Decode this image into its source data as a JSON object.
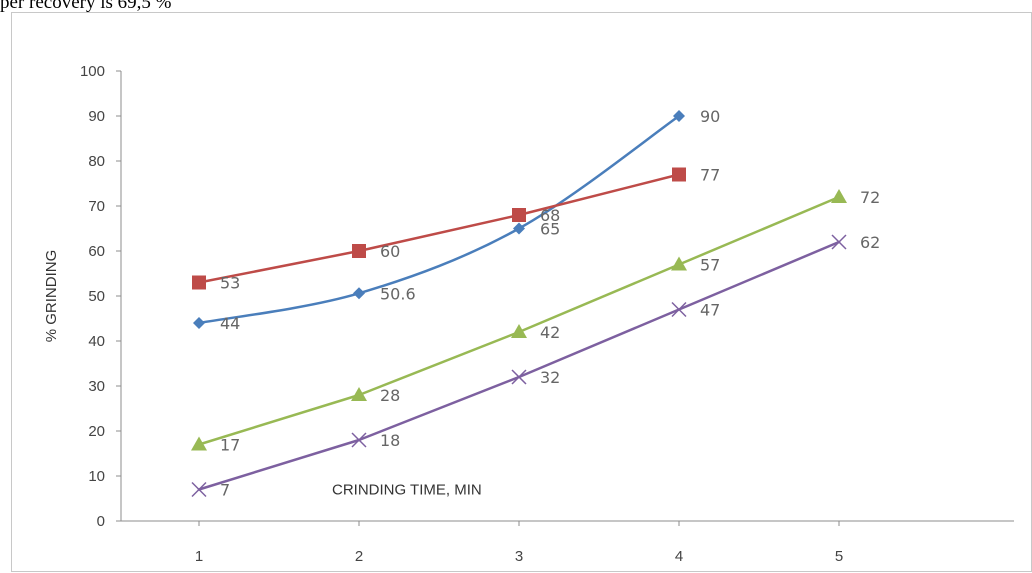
{
  "caption": "per recovery is 69,5 %",
  "chart_data": {
    "type": "line",
    "title": "",
    "xlabel": "CRINDING TIME, MIN",
    "ylabel": "% GRINDING",
    "categories": [
      "1",
      "2",
      "3",
      "4",
      "5"
    ],
    "ylim": [
      0,
      100
    ],
    "yticks": [
      0,
      10,
      20,
      30,
      40,
      50,
      60,
      70,
      80,
      90,
      100
    ],
    "grid": false,
    "legend": "none",
    "series": [
      {
        "color": "#4a7ebb",
        "marker": "diamond",
        "smooth": true,
        "values": [
          44,
          50.6,
          65,
          90,
          null
        ],
        "labels": [
          "44",
          "50.6",
          "65",
          "90",
          ""
        ]
      },
      {
        "color": "#be4b48",
        "marker": "square",
        "smooth": false,
        "values": [
          53,
          60,
          68,
          77,
          null
        ],
        "labels": [
          "53",
          "60",
          "68",
          "77",
          ""
        ]
      },
      {
        "color": "#98b954",
        "marker": "triangle",
        "smooth": false,
        "values": [
          17,
          28,
          42,
          57,
          72
        ],
        "labels": [
          "17",
          "28",
          "42",
          "57",
          "72"
        ]
      },
      {
        "color": "#7d60a0",
        "marker": "x",
        "smooth": false,
        "values": [
          7,
          18,
          32,
          47,
          62
        ],
        "labels": [
          "7",
          "18",
          "32",
          "47",
          "62"
        ]
      }
    ]
  }
}
